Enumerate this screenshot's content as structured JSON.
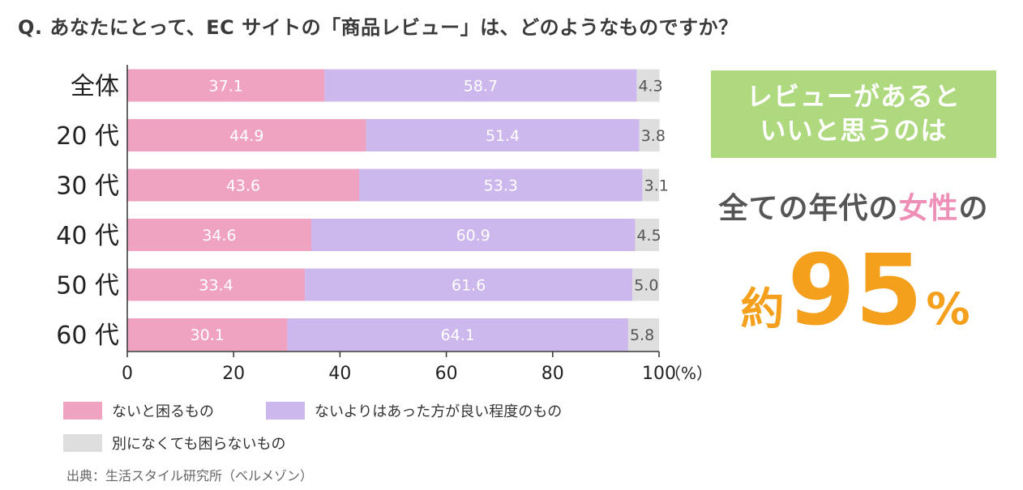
{
  "question": "Q. あなたにとって、EC サイトの「商品レビュー」は、どのようなものですか？",
  "chart_data": {
    "type": "bar",
    "orientation": "horizontal",
    "stacked": true,
    "categories": [
      "全体",
      "20 代",
      "30 代",
      "40 代",
      "50 代",
      "60 代"
    ],
    "series": [
      {
        "name": "ないと困るもの",
        "color": "#f0a3c1",
        "values": [
          37.1,
          44.9,
          43.6,
          34.6,
          33.4,
          30.1
        ]
      },
      {
        "name": "ないよりはあった方が良い程度のもの",
        "color": "#ccb8ec",
        "values": [
          58.7,
          51.4,
          53.3,
          60.9,
          61.6,
          64.1
        ]
      },
      {
        "name": "別になくても困らないもの",
        "color": "#dedede",
        "values": [
          4.3,
          3.8,
          3.1,
          4.5,
          5.0,
          5.8
        ]
      }
    ],
    "xlim": [
      0,
      100
    ],
    "xticks": [
      "0",
      "20",
      "40",
      "60",
      "80",
      "100"
    ],
    "xunit": "（%）",
    "legend_position": "bottom"
  },
  "source": "出典：生活スタイル研究所（ベルメゾン）",
  "callout": {
    "box_line1": "レビューがあると",
    "box_line2": "いいと思うのは",
    "line2_prefix": "全ての年代の",
    "line2_highlight": "女性",
    "line2_suffix": "の",
    "big_prefix": "約",
    "big_number": "95",
    "big_suffix": "%"
  }
}
